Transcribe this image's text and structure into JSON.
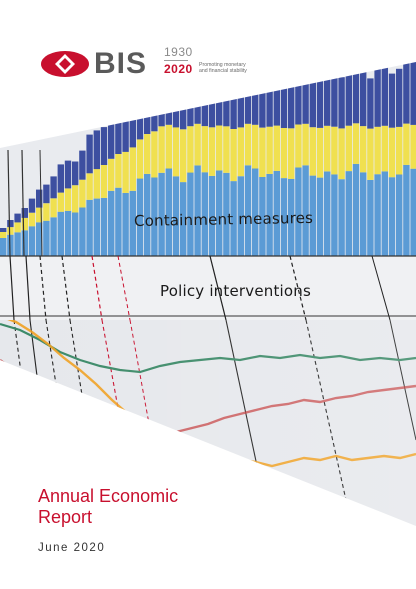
{
  "brand": {
    "logo_text": "BIS",
    "year_start": "1930",
    "year_end": "2020",
    "tagline_line1": "Promoting monetary",
    "tagline_line2": "and financial stability",
    "color_red": "#c8102e",
    "color_grey": "#5a5a5a"
  },
  "graphic": {
    "label_top": "Containment measures",
    "label_middle": "Policy interventions",
    "colors": {
      "stack_blue": "#5b9bd5",
      "stack_yellow": "#f0e050",
      "stack_navy": "#3d4fa0",
      "line_green": "#3c8a68",
      "line_orange": "#f0a020",
      "line_red": "#c43c3c",
      "dashed_red": "#c8102e"
    },
    "icons": [
      "bis-logo-mark"
    ]
  },
  "title": {
    "line1": "Annual Economic",
    "line2": "Report"
  },
  "date": "June 2020"
}
